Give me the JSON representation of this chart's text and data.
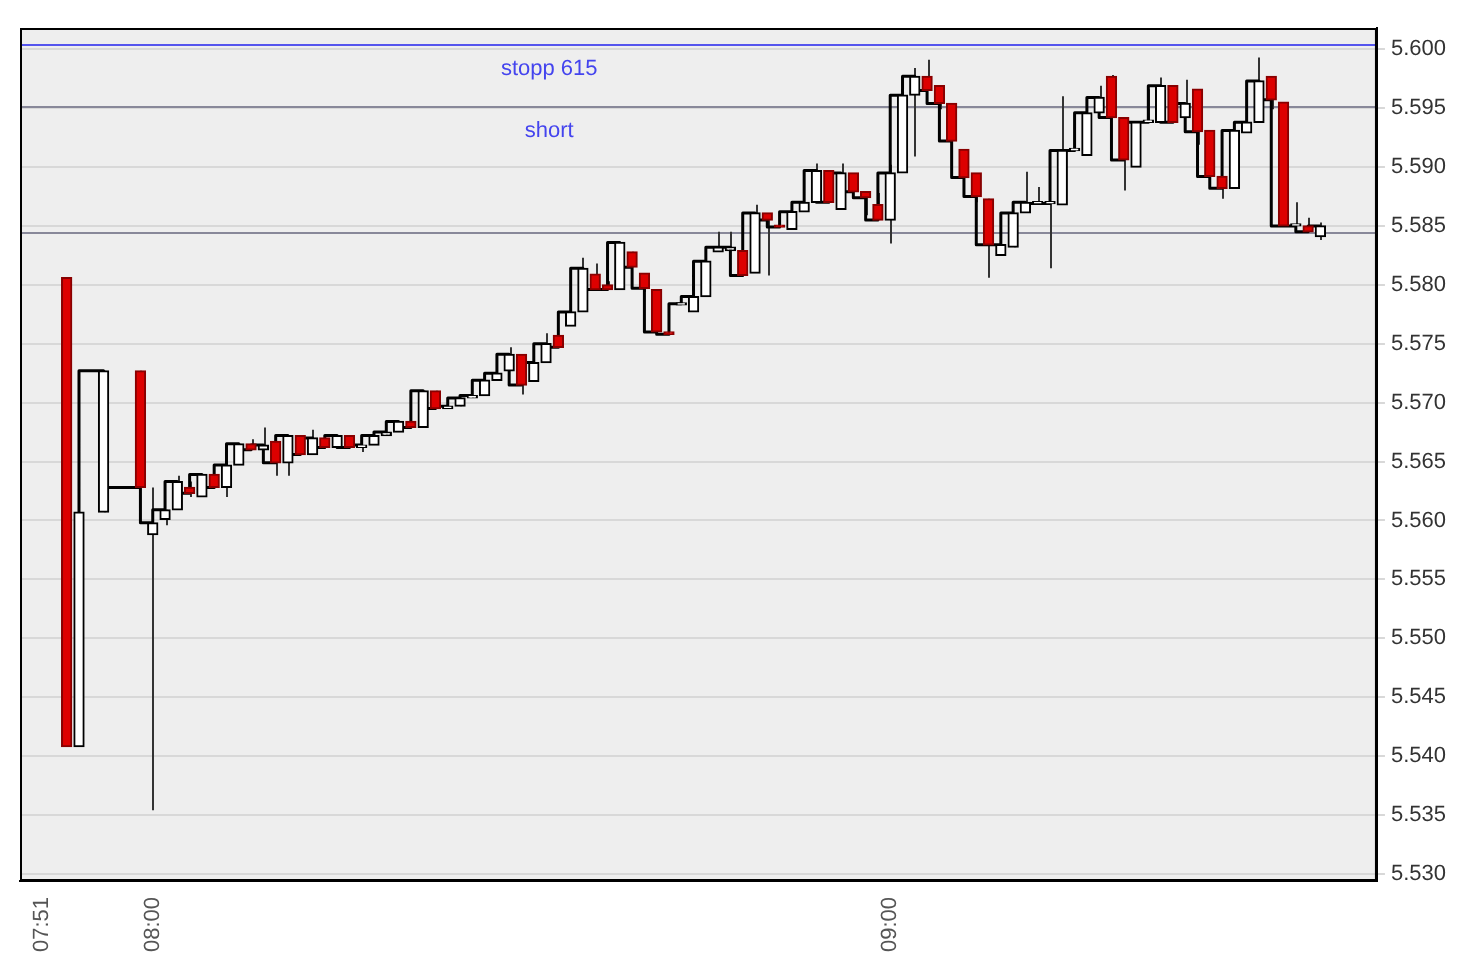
{
  "chart_data": {
    "type": "candlestick",
    "x": [
      7.8833,
      7.9,
      7.9333,
      7.9833,
      8,
      8.0167,
      8.0333,
      8.05,
      8.0667,
      8.0833,
      8.1,
      8.1167,
      8.1333,
      8.15,
      8.1667,
      8.1833,
      8.2,
      8.2167,
      8.2333,
      8.25,
      8.2667,
      8.2833,
      8.3,
      8.3167,
      8.3333,
      8.35,
      8.3667,
      8.3833,
      8.4,
      8.4167,
      8.4333,
      8.45,
      8.4667,
      8.4833,
      8.5,
      8.5167,
      8.5333,
      8.55,
      8.5667,
      8.5833,
      8.6,
      8.6167,
      8.6333,
      8.65,
      8.6667,
      8.6833,
      8.7,
      8.7167,
      8.7333,
      8.75,
      8.7667,
      8.7833,
      8.8,
      8.8167,
      8.8333,
      8.85,
      8.8667,
      8.8833,
      8.9,
      8.9167,
      8.9333,
      8.95,
      8.9667,
      8.9833,
      9,
      9.0167,
      9.0333,
      9.05,
      9.0667,
      9.0833,
      9.1,
      9.1167,
      9.1333,
      9.15,
      9.1667,
      9.1833,
      9.2,
      9.2167,
      9.2333,
      9.25,
      9.2667,
      9.2833,
      9.3,
      9.3167,
      9.3333,
      9.35,
      9.3667,
      9.3833,
      9.4,
      9.4167,
      9.4333,
      9.45,
      9.4667,
      9.4833,
      9.5,
      9.5167,
      9.5333,
      9.55,
      9.5667,
      9.5833
    ],
    "ohlc": [
      [
        5.5806,
        5.5806,
        5.5408,
        5.5408
      ],
      [
        5.5408,
        5.5607,
        5.5408,
        5.5607
      ],
      [
        5.5607,
        5.5727,
        5.5607,
        5.5727
      ],
      [
        5.5727,
        5.5727,
        5.5628,
        5.5628
      ],
      [
        5.5588,
        5.5628,
        5.5354,
        5.5598
      ],
      [
        5.5601,
        5.5609,
        5.5596,
        5.5609
      ],
      [
        5.5609,
        5.5638,
        5.5609,
        5.5633
      ],
      [
        5.5628,
        5.5633,
        5.562,
        5.5623
      ],
      [
        5.562,
        5.5639,
        5.562,
        5.5639
      ],
      [
        5.5639,
        5.5639,
        5.5628,
        5.5628
      ],
      [
        5.5628,
        5.5647,
        5.562,
        5.5647
      ],
      [
        5.5647,
        5.5665,
        5.5647,
        5.5665
      ],
      [
        5.5665,
        5.5669,
        5.566,
        5.566
      ],
      [
        5.566,
        5.5679,
        5.566,
        5.5664
      ],
      [
        5.5667,
        5.5667,
        5.5638,
        5.5649
      ],
      [
        5.5649,
        5.5672,
        5.5638,
        5.5672
      ],
      [
        5.5672,
        5.5672,
        5.5656,
        5.5656
      ],
      [
        5.5656,
        5.5677,
        5.5656,
        5.567
      ],
      [
        5.567,
        5.567,
        5.5662,
        5.5662
      ],
      [
        5.5662,
        5.5672,
        5.5662,
        5.5672
      ],
      [
        5.5672,
        5.5672,
        5.5662,
        5.5662
      ],
      [
        5.5662,
        5.5664,
        5.5658,
        5.5664
      ],
      [
        5.5664,
        5.5672,
        5.5664,
        5.5672
      ],
      [
        5.5672,
        5.5675,
        5.5672,
        5.5675
      ],
      [
        5.5675,
        5.5684,
        5.5675,
        5.5684
      ],
      [
        5.5684,
        5.5684,
        5.5679,
        5.5679
      ],
      [
        5.5679,
        5.571,
        5.5679,
        5.571
      ],
      [
        5.571,
        5.571,
        5.5695,
        5.5695
      ],
      [
        5.5695,
        5.5697,
        5.5695,
        5.5697
      ],
      [
        5.5697,
        5.5704,
        5.5697,
        5.5704
      ],
      [
        5.5704,
        5.5706,
        5.5704,
        5.5706
      ],
      [
        5.5706,
        5.5719,
        5.5706,
        5.5719
      ],
      [
        5.5719,
        5.5725,
        5.5719,
        5.5725
      ],
      [
        5.5727,
        5.5747,
        5.5727,
        5.5741
      ],
      [
        5.5741,
        5.5741,
        5.5707,
        5.5715
      ],
      [
        5.5718,
        5.5734,
        5.5718,
        5.5734
      ],
      [
        5.5734,
        5.5759,
        5.5734,
        5.575
      ],
      [
        5.5757,
        5.5757,
        5.5747,
        5.5747
      ],
      [
        5.5765,
        5.5777,
        5.5765,
        5.5777
      ],
      [
        5.5777,
        5.5823,
        5.5777,
        5.5814
      ],
      [
        5.5809,
        5.5818,
        5.5796,
        5.5796
      ],
      [
        5.58,
        5.5803,
        5.5796,
        5.5796
      ],
      [
        5.5796,
        5.5836,
        5.5796,
        5.5836
      ],
      [
        5.5828,
        5.5828,
        5.5815,
        5.5815
      ],
      [
        5.581,
        5.581,
        5.5794,
        5.5797
      ],
      [
        5.5796,
        5.5796,
        5.576,
        5.576
      ],
      [
        5.576,
        5.576,
        5.5758,
        5.5758
      ],
      [
        5.5783,
        5.5784,
        5.5783,
        5.5784
      ],
      [
        5.5777,
        5.579,
        5.5777,
        5.579
      ],
      [
        5.579,
        5.582,
        5.579,
        5.582
      ],
      [
        5.5828,
        5.5845,
        5.5828,
        5.5832
      ],
      [
        5.5829,
        5.5845,
        5.5829,
        5.5832
      ],
      [
        5.5829,
        5.5829,
        5.5808,
        5.5808
      ],
      [
        5.581,
        5.5868,
        5.581,
        5.5861
      ],
      [
        5.5861,
        5.5861,
        5.5808,
        5.5855
      ],
      [
        5.585,
        5.585,
        5.5849,
        5.5849
      ],
      [
        5.5847,
        5.5862,
        5.5847,
        5.5862
      ],
      [
        5.5862,
        5.587,
        5.5862,
        5.587
      ],
      [
        5.587,
        5.5903,
        5.587,
        5.5897
      ],
      [
        5.5897,
        5.5897,
        5.587,
        5.587
      ],
      [
        5.5864,
        5.5903,
        5.5864,
        5.5895
      ],
      [
        5.5895,
        5.5895,
        5.5879,
        5.5879
      ],
      [
        5.5879,
        5.5879,
        5.5859,
        5.5874
      ],
      [
        5.5868,
        5.5878,
        5.5855,
        5.5855
      ],
      [
        5.5855,
        5.5902,
        5.5835,
        5.5895
      ],
      [
        5.5895,
        5.5961,
        5.5895,
        5.5961
      ],
      [
        5.5961,
        5.5984,
        5.5909,
        5.5977
      ],
      [
        5.5977,
        5.5991,
        5.5965,
        5.5965
      ],
      [
        5.5969,
        5.5969,
        5.5949,
        5.5954
      ],
      [
        5.5954,
        5.5954,
        5.5922,
        5.5922
      ],
      [
        5.5915,
        5.5915,
        5.5891,
        5.5891
      ],
      [
        5.5895,
        5.5895,
        5.587,
        5.5875
      ],
      [
        5.5873,
        5.5873,
        5.5806,
        5.5834
      ],
      [
        5.5825,
        5.5834,
        5.5825,
        5.5834
      ],
      [
        5.5832,
        5.5861,
        5.5832,
        5.5861
      ],
      [
        5.5861,
        5.5896,
        5.5861,
        5.587
      ],
      [
        5.5869,
        5.5883,
        5.5869,
        5.5869
      ],
      [
        5.5869,
        5.5869,
        5.5814,
        5.5869
      ],
      [
        5.5868,
        5.596,
        5.5868,
        5.5914
      ],
      [
        5.5914,
        5.5929,
        5.5914,
        5.5914
      ],
      [
        5.591,
        5.5953,
        5.591,
        5.5946
      ],
      [
        5.5946,
        5.5969,
        5.5946,
        5.5959
      ],
      [
        5.5977,
        5.5978,
        5.5942,
        5.5942
      ],
      [
        5.5942,
        5.5942,
        5.588,
        5.5906
      ],
      [
        5.59,
        5.5938,
        5.59,
        5.5938
      ],
      [
        5.5938,
        5.5966,
        5.5938,
        5.5938
      ],
      [
        5.5938,
        5.5976,
        5.5938,
        5.5969
      ],
      [
        5.5969,
        5.5969,
        5.5938,
        5.5938
      ],
      [
        5.5942,
        5.5974,
        5.5942,
        5.5954
      ],
      [
        5.5966,
        5.5966,
        5.5919,
        5.593
      ],
      [
        5.5931,
        5.5931,
        5.5892,
        5.5892
      ],
      [
        5.5892,
        5.5892,
        5.5873,
        5.5882
      ],
      [
        5.5882,
        5.5931,
        5.5882,
        5.5931
      ],
      [
        5.5929,
        5.5938,
        5.5929,
        5.5938
      ],
      [
        5.5938,
        5.5993,
        5.5938,
        5.5973
      ],
      [
        5.5977,
        5.5977,
        5.5949,
        5.5957
      ],
      [
        5.5955,
        5.5955,
        5.585,
        5.585
      ],
      [
        5.585,
        5.587,
        5.585,
        5.585
      ],
      [
        5.585,
        5.5857,
        5.5845,
        5.5845
      ],
      [
        5.5841,
        5.5853,
        5.5838,
        5.585
      ]
    ],
    "series": [
      {
        "type": "step",
        "color": "#000000",
        "values": [
          null,
          5.5607,
          5.5727,
          5.5628,
          5.5598,
          5.5609,
          5.5633,
          5.5623,
          5.5639,
          5.5628,
          5.5647,
          5.5665,
          5.566,
          5.5664,
          5.5649,
          5.5672,
          5.5656,
          5.567,
          5.5662,
          5.5672,
          5.5662,
          5.5664,
          5.5672,
          5.5675,
          5.5684,
          5.5679,
          5.571,
          5.5695,
          5.5697,
          5.5704,
          5.5706,
          5.5719,
          5.5725,
          5.5741,
          5.5715,
          5.5734,
          5.575,
          5.5747,
          5.5777,
          5.5814,
          5.5796,
          5.5796,
          5.5836,
          5.5815,
          5.5797,
          5.576,
          5.5758,
          5.5784,
          5.579,
          5.582,
          5.5832,
          5.5832,
          5.5808,
          5.5861,
          5.5855,
          5.5849,
          5.5862,
          5.587,
          5.5897,
          5.587,
          5.5895,
          5.5879,
          5.5874,
          5.5855,
          5.5895,
          5.5961,
          5.5977,
          5.5965,
          5.5954,
          5.5922,
          5.5891,
          5.5875,
          5.5834,
          5.5834,
          5.5861,
          5.587,
          5.5869,
          5.5869,
          5.5914,
          5.5914,
          5.5946,
          5.5959,
          5.5942,
          5.5906,
          5.5938,
          5.5938,
          5.5969,
          5.5938,
          5.5954,
          5.593,
          5.5892,
          5.5882,
          5.5931,
          5.5938,
          5.5973,
          5.5957,
          5.585,
          5.585,
          5.5845,
          5.585
        ]
      }
    ],
    "xlim": [
      7.82,
      9.66
    ],
    "xticks": [
      {
        "value": 7.85,
        "label": "07:51"
      },
      {
        "value": 8,
        "label": "08:00"
      },
      {
        "value": 9,
        "label": "09:00"
      }
    ],
    "ylim": [
      5.5294,
      5.6018
    ],
    "yticks": [
      {
        "value": 5.53,
        "label": "5.530"
      },
      {
        "value": 5.535,
        "label": "5.535"
      },
      {
        "value": 5.54,
        "label": "5.540"
      },
      {
        "value": 5.545,
        "label": "5.545"
      },
      {
        "value": 5.55,
        "label": "5.550"
      },
      {
        "value": 5.555,
        "label": "5.555"
      },
      {
        "value": 5.56,
        "label": "5.560"
      },
      {
        "value": 5.565,
        "label": "5.565"
      },
      {
        "value": 5.57,
        "label": "5.570"
      },
      {
        "value": 5.575,
        "label": "5.575"
      },
      {
        "value": 5.58,
        "label": "5.580"
      },
      {
        "value": 5.585,
        "label": "5.585"
      },
      {
        "value": 5.59,
        "label": "5.590"
      },
      {
        "value": 5.595,
        "label": "5.595"
      },
      {
        "value": 5.6,
        "label": "5.600"
      }
    ],
    "grid": "y",
    "ref_lines": [
      {
        "axis": "y",
        "value": 5.6004,
        "label": "stopp 615",
        "color": "#5555ee"
      },
      {
        "axis": "y",
        "value": 5.5952,
        "label": "short",
        "color": "#888899"
      },
      {
        "axis": "y",
        "value": 5.5845,
        "color": "#888899"
      }
    ]
  }
}
